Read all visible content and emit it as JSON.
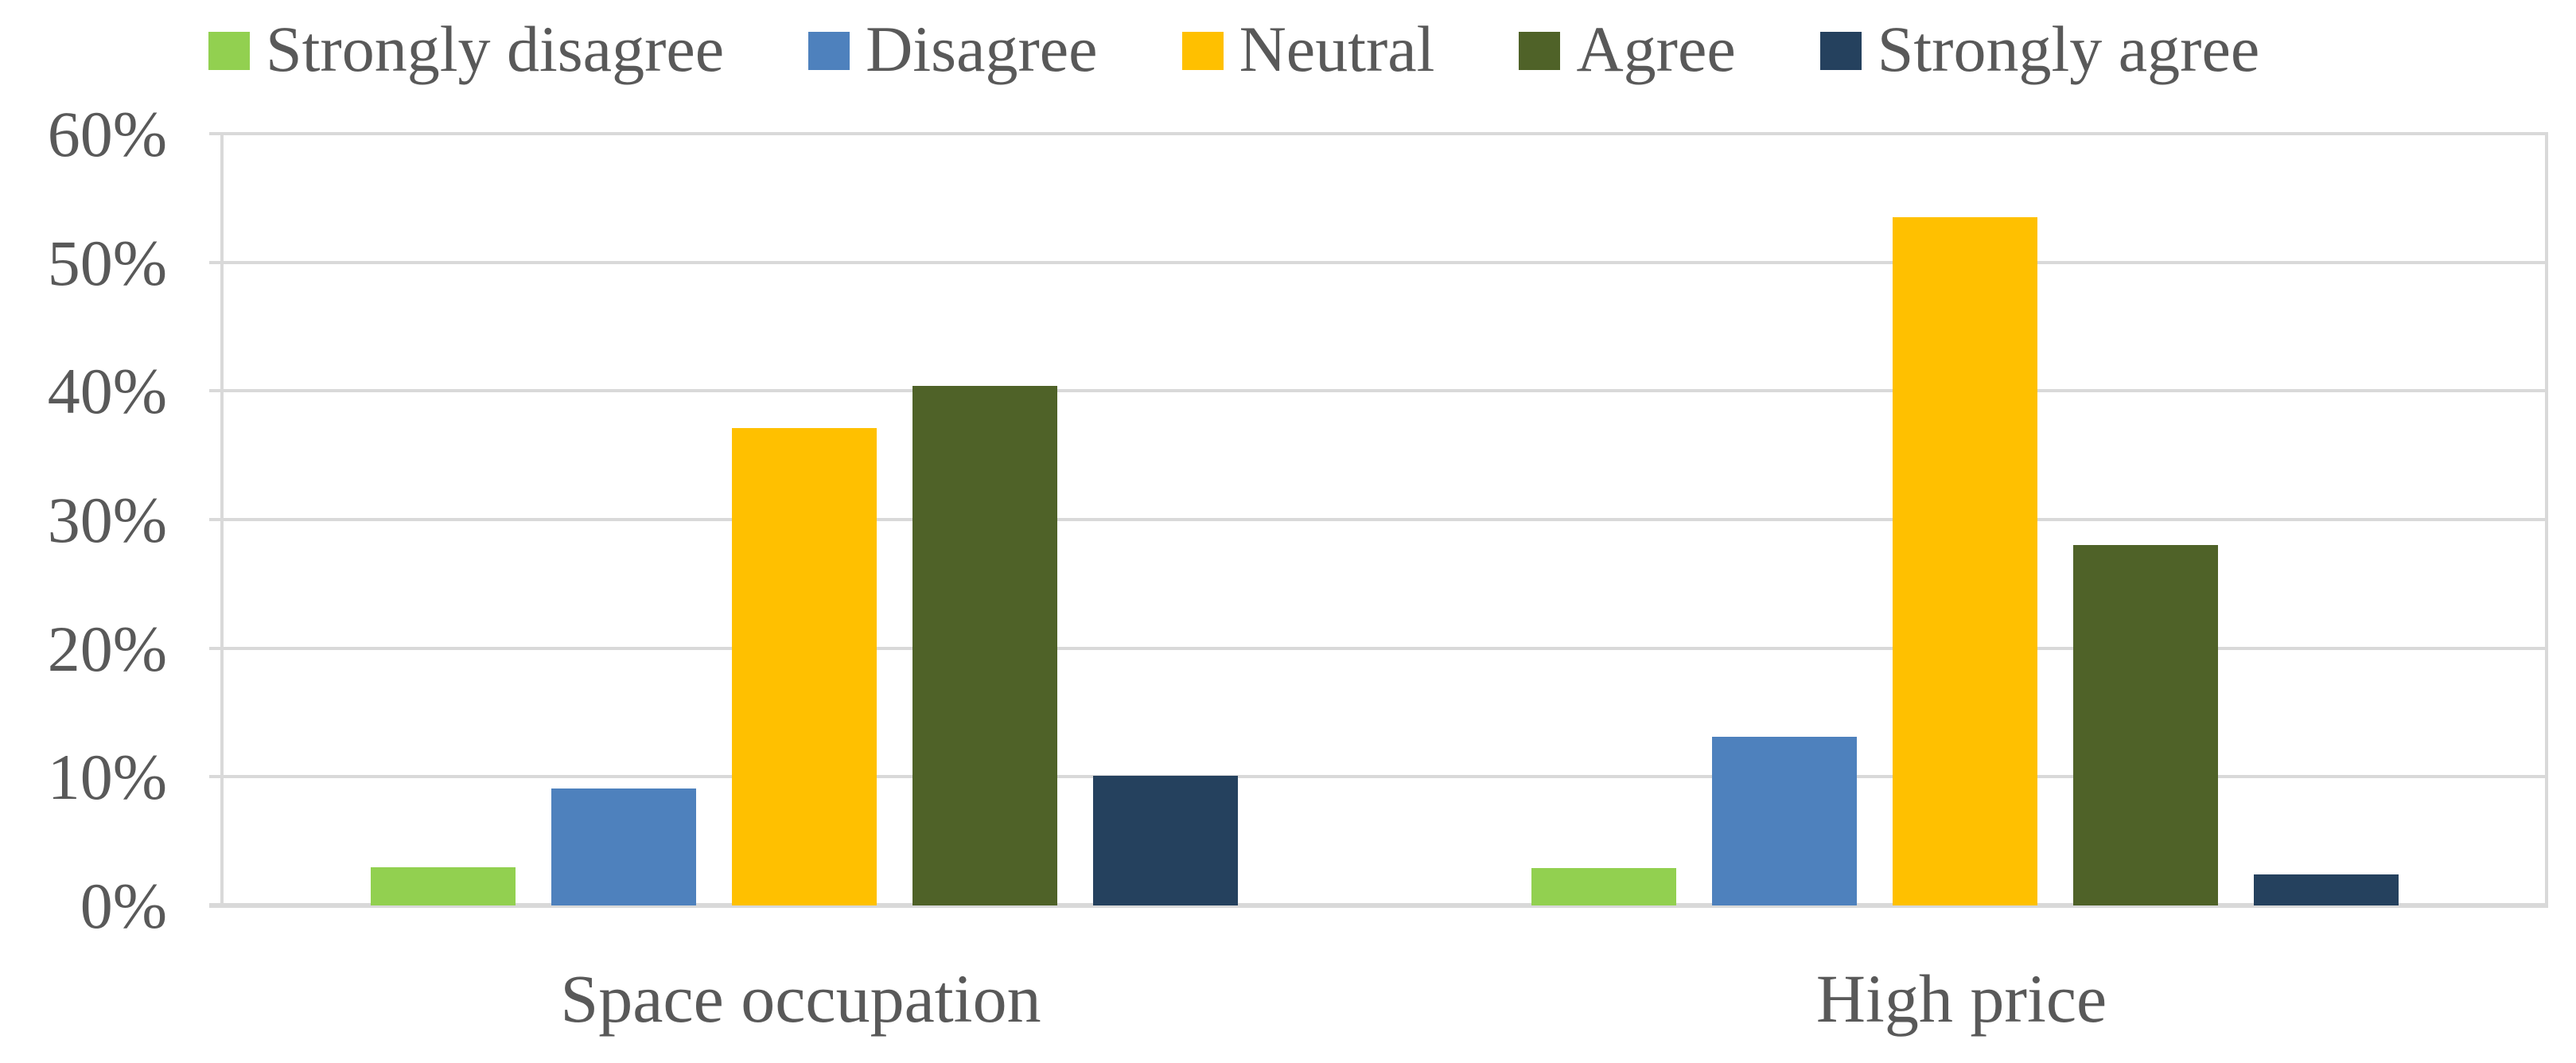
{
  "figure": {
    "background": "#FFFFFF",
    "text_color": "#595959",
    "gridline_color": "#D9D9D9"
  },
  "chart_data": {
    "type": "bar",
    "title": "",
    "xlabel": "",
    "ylabel": "",
    "categories": [
      "Space occupation",
      "High price"
    ],
    "series": [
      {
        "name": "Strongly disagree",
        "color": "#92D050",
        "values": [
          3.0,
          2.9
        ]
      },
      {
        "name": "Disagree",
        "color": "#4E81BD",
        "values": [
          9.1,
          13.1
        ]
      },
      {
        "name": "Neutral",
        "color": "#FFC000",
        "values": [
          37.1,
          53.5
        ]
      },
      {
        "name": "Agree",
        "color": "#4F6228",
        "values": [
          40.4,
          28.0
        ]
      },
      {
        "name": "Strongly agree",
        "color": "#25415E",
        "values": [
          10.1,
          2.4
        ]
      }
    ],
    "y_axis": {
      "min": 0,
      "max": 60,
      "step": 10,
      "tick_labels": [
        "0%",
        "10%",
        "20%",
        "30%",
        "40%",
        "50%",
        "60%"
      ]
    },
    "grid": true,
    "legend_position": "top"
  }
}
